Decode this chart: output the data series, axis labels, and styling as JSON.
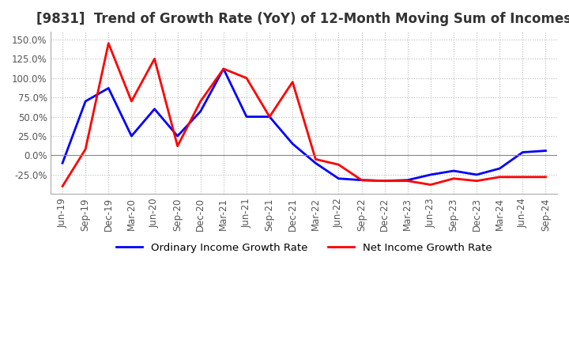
{
  "title": "[9831]  Trend of Growth Rate (YoY) of 12-Month Moving Sum of Incomes",
  "title_fontsize": 12,
  "background_color": "#ffffff",
  "grid_color": "#bbbbbb",
  "ordinary_color": "#0000ff",
  "net_color": "#ff0000",
  "legend_labels": [
    "Ordinary Income Growth Rate",
    "Net Income Growth Rate"
  ],
  "x_labels": [
    "Jun-19",
    "Sep-19",
    "Dec-19",
    "Mar-20",
    "Jun-20",
    "Sep-20",
    "Dec-20",
    "Mar-21",
    "Jun-21",
    "Sep-21",
    "Dec-21",
    "Mar-22",
    "Jun-22",
    "Sep-22",
    "Dec-22",
    "Mar-23",
    "Jun-23",
    "Sep-23",
    "Dec-23",
    "Mar-24",
    "Jun-24",
    "Sep-24"
  ],
  "ordinary_income": [
    -0.1,
    0.7,
    0.87,
    0.25,
    0.6,
    0.25,
    0.57,
    1.12,
    0.5,
    0.5,
    0.15,
    -0.1,
    -0.3,
    -0.32,
    -0.33,
    -0.32,
    -0.25,
    -0.2,
    -0.25,
    -0.17,
    0.04,
    0.06
  ],
  "net_income": [
    -0.4,
    0.08,
    1.45,
    0.7,
    1.25,
    0.12,
    0.7,
    1.12,
    1.0,
    0.5,
    0.95,
    -0.05,
    -0.12,
    -0.32,
    -0.33,
    -0.33,
    -0.38,
    -0.3,
    -0.33,
    -0.28,
    -0.28,
    -0.28
  ],
  "ylim": [
    -0.5,
    1.6
  ],
  "yticks": [
    -0.25,
    0.0,
    0.25,
    0.5,
    0.75,
    1.0,
    1.25,
    1.5
  ]
}
